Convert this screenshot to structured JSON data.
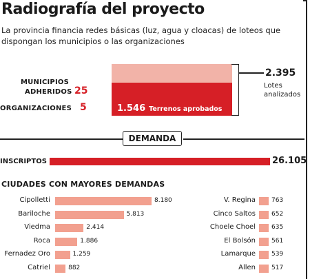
{
  "title": "Radiografía del proyecto",
  "subtitle": "La provincia financia redes básicas (luz, agua y cloacas) de loteos que dispongan los municipios o las organizaciones",
  "municipios": {
    "label_line1": "MUNICIPIOS",
    "label_line2": "ADHERIDOS",
    "value": "25"
  },
  "organizaciones": {
    "label": "ORGANIZACIONES",
    "value": "5"
  },
  "lotes": {
    "total_value": 2395,
    "total_text": "2.395",
    "total_label": "Lotes analizados",
    "approved_value": 1546,
    "approved_text": "1.546",
    "approved_label": "Terrenos aprobados"
  },
  "demanda_label": "DEMANDA",
  "inscriptos": {
    "label": "INSCRIPTOS",
    "value": "26.105"
  },
  "chart_data": {
    "type": "bar",
    "title": "CIUDADES CON MAYORES DEMANDAS",
    "scale_max": 8180,
    "series": [
      {
        "categories": [
          "Cipolletti",
          "Bariloche",
          "Viedma",
          "Roca",
          "Fernadez Oro",
          "Catriel"
        ],
        "values": [
          8180,
          5813,
          2414,
          1886,
          1259,
          882
        ],
        "labels": [
          "8.180",
          "5.813",
          "2.414",
          "1.886",
          "1.259",
          "882"
        ]
      },
      {
        "categories": [
          "V. Regina",
          "Cinco Saltos",
          "Choele Choel",
          "El Bolsón",
          "Lamarque",
          "Allen"
        ],
        "values": [
          763,
          652,
          635,
          561,
          539,
          517
        ],
        "labels": [
          "763",
          "652",
          "635",
          "561",
          "539",
          "517"
        ]
      }
    ]
  },
  "colors": {
    "red": "#d61f26",
    "pink": "#f2b3a8",
    "salmon": "#f2a08f"
  }
}
